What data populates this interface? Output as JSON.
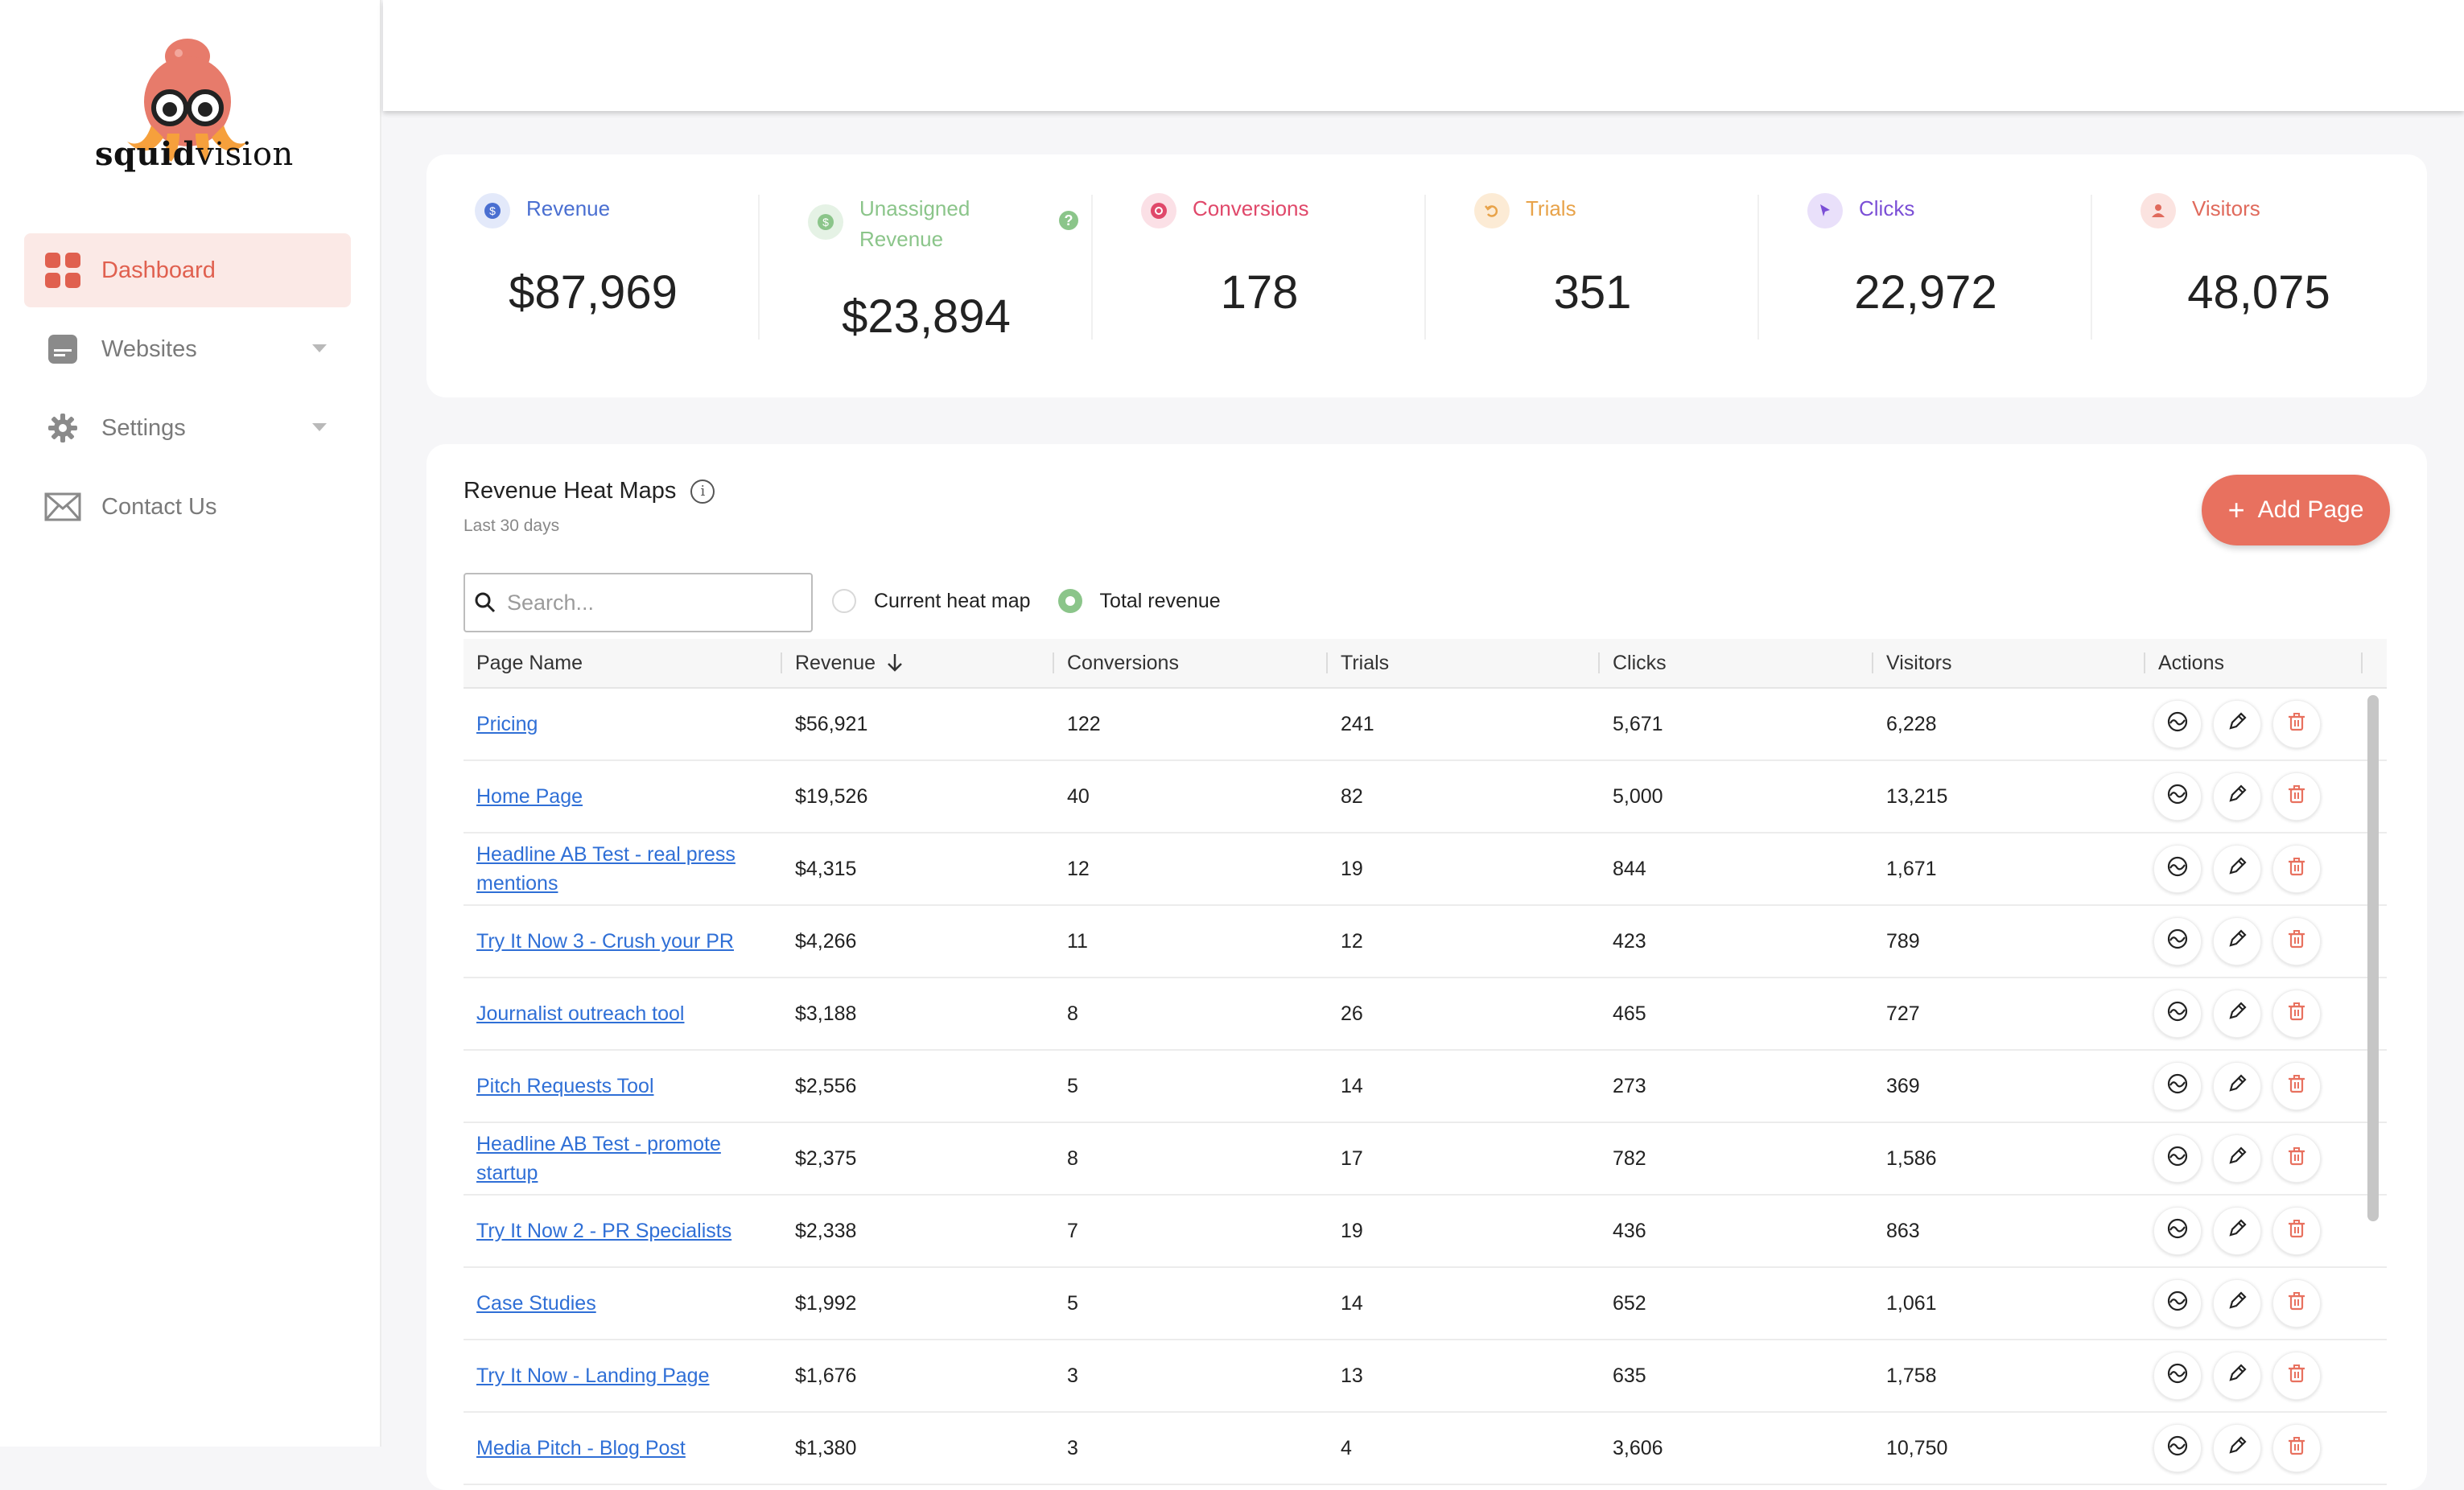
{
  "brand": {
    "name_bold": "squid",
    "name_rest": "vision"
  },
  "sidebar": {
    "items": [
      {
        "label": "Dashboard",
        "icon": "dashboard-grid-icon",
        "active": true
      },
      {
        "label": "Websites",
        "icon": "website-icon",
        "has_caret": true
      },
      {
        "label": "Settings",
        "icon": "gear-icon",
        "has_caret": true
      },
      {
        "label": "Contact Us",
        "icon": "envelope-icon"
      }
    ]
  },
  "stats": [
    {
      "label": "Revenue",
      "value": "$87,969",
      "color": "#4a6fd1",
      "icon": "dollar-icon"
    },
    {
      "label": "Unassigned Revenue",
      "value": "$23,894",
      "color": "#8bc58a",
      "icon": "dollar-icon"
    },
    {
      "label": "Conversions",
      "value": "178",
      "color": "#e0486a",
      "icon": "conversion-icon"
    },
    {
      "label": "Trials",
      "value": "351",
      "color": "#e8a34a",
      "icon": "undo-icon"
    },
    {
      "label": "Clicks",
      "value": "22,972",
      "color": "#7b4fd6",
      "icon": "cursor-icon"
    },
    {
      "label": "Visitors",
      "value": "48,075",
      "color": "#e06a5c",
      "icon": "user-icon"
    }
  ],
  "heatmap": {
    "title": "Revenue Heat Maps",
    "subtitle": "Last 30 days",
    "add_button": "Add Page",
    "search_placeholder": "Search...",
    "radio_options": [
      {
        "label": "Current heat map",
        "selected": false
      },
      {
        "label": "Total revenue",
        "selected": true
      }
    ],
    "columns": [
      "Page Name",
      "Revenue",
      "Conversions",
      "Trials",
      "Clicks",
      "Visitors",
      "Actions"
    ],
    "rows": [
      [
        "Pricing",
        "$56,921",
        "122",
        "241",
        "5,671",
        "6,228"
      ],
      [
        "Home Page",
        "$19,526",
        "40",
        "82",
        "5,000",
        "13,215"
      ],
      [
        "Headline AB Test - real press mentions",
        "$4,315",
        "12",
        "19",
        "844",
        "1,671"
      ],
      [
        "Try It Now 3 - Crush your PR",
        "$4,266",
        "11",
        "12",
        "423",
        "789"
      ],
      [
        "Journalist outreach tool",
        "$3,188",
        "8",
        "26",
        "465",
        "727"
      ],
      [
        "Pitch Requests Tool",
        "$2,556",
        "5",
        "14",
        "273",
        "369"
      ],
      [
        "Headline AB Test - promote startup",
        "$2,375",
        "8",
        "17",
        "782",
        "1,586"
      ],
      [
        "Try It Now 2 - PR Specialists",
        "$2,338",
        "7",
        "19",
        "436",
        "863"
      ],
      [
        "Case Studies",
        "$1,992",
        "5",
        "14",
        "652",
        "1,061"
      ],
      [
        "Try It Now - Landing Page",
        "$1,676",
        "3",
        "13",
        "635",
        "1,758"
      ],
      [
        "Media Pitch - Blog Post",
        "$1,380",
        "3",
        "4",
        "3,606",
        "10,750"
      ]
    ]
  }
}
